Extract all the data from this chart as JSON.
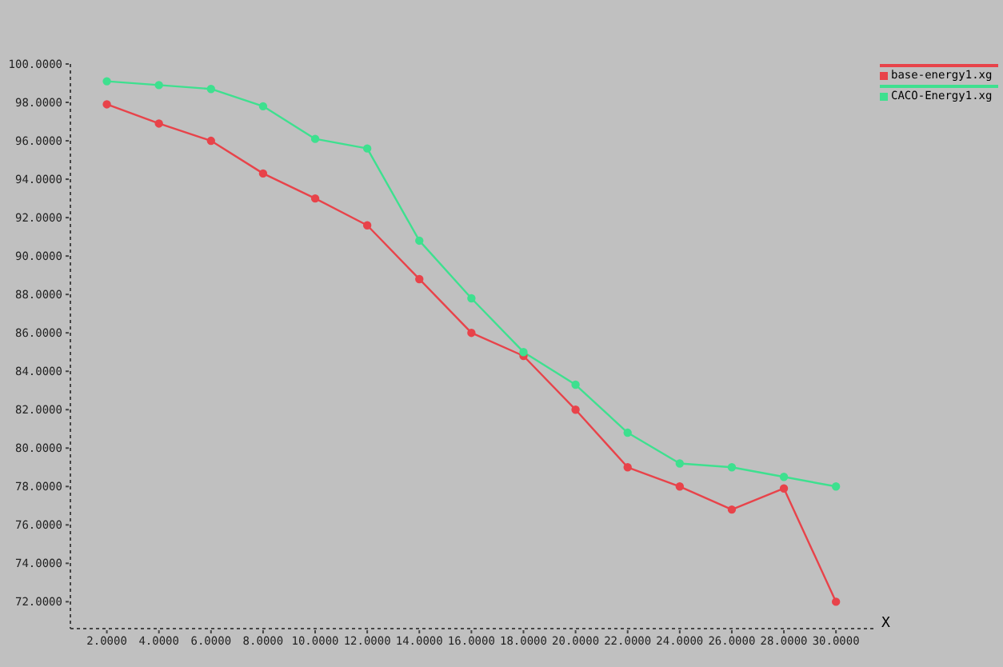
{
  "chart_data": {
    "type": "line",
    "xlabel": "X",
    "x": [
      2,
      4,
      6,
      8,
      10,
      12,
      14,
      16,
      18,
      20,
      22,
      24,
      26,
      28,
      30
    ],
    "series": [
      {
        "name": "base-energy1.xg",
        "color": "#e8434a",
        "values": [
          97.9,
          96.9,
          96.0,
          94.3,
          93.0,
          91.6,
          88.8,
          86.0,
          84.8,
          82.0,
          79.0,
          78.0,
          76.8,
          77.9,
          72.0
        ]
      },
      {
        "name": "CACO-Energy1.xg",
        "color": "#3ee08f",
        "values": [
          99.1,
          98.9,
          98.7,
          97.8,
          96.1,
          95.6,
          90.8,
          87.8,
          85.0,
          83.3,
          80.8,
          79.2,
          79.0,
          78.5,
          78.0
        ]
      }
    ],
    "xlim": [
      0.6,
      31.5
    ],
    "ylim": [
      70.6,
      100
    ],
    "xticks": [
      {
        "value": 2,
        "label": "2.0000"
      },
      {
        "value": 4,
        "label": "4.0000"
      },
      {
        "value": 6,
        "label": "6.0000"
      },
      {
        "value": 8,
        "label": "8.0000"
      },
      {
        "value": 10,
        "label": "10.0000"
      },
      {
        "value": 12,
        "label": "12.0000"
      },
      {
        "value": 14,
        "label": "14.0000"
      },
      {
        "value": 16,
        "label": "16.0000"
      },
      {
        "value": 18,
        "label": "18.0000"
      },
      {
        "value": 20,
        "label": "20.0000"
      },
      {
        "value": 22,
        "label": "22.0000"
      },
      {
        "value": 24,
        "label": "24.0000"
      },
      {
        "value": 26,
        "label": "26.0000"
      },
      {
        "value": 28,
        "label": "28.0000"
      },
      {
        "value": 30,
        "label": "30.0000"
      }
    ],
    "yticks": [
      {
        "value": 72,
        "label": "72.0000"
      },
      {
        "value": 74,
        "label": "74.0000"
      },
      {
        "value": 76,
        "label": "76.0000"
      },
      {
        "value": 78,
        "label": "78.0000"
      },
      {
        "value": 80,
        "label": "80.0000"
      },
      {
        "value": 82,
        "label": "82.0000"
      },
      {
        "value": 84,
        "label": "84.0000"
      },
      {
        "value": 86,
        "label": "86.0000"
      },
      {
        "value": 88,
        "label": "88.0000"
      },
      {
        "value": 90,
        "label": "90.0000"
      },
      {
        "value": 92,
        "label": "92.0000"
      },
      {
        "value": 94,
        "label": "94.0000"
      },
      {
        "value": 96,
        "label": "96.0000"
      },
      {
        "value": 98,
        "label": "98.0000"
      },
      {
        "value": 100,
        "label": "100.0000"
      }
    ],
    "legend": "top right",
    "marker": "circle",
    "line_style": "solid"
  }
}
